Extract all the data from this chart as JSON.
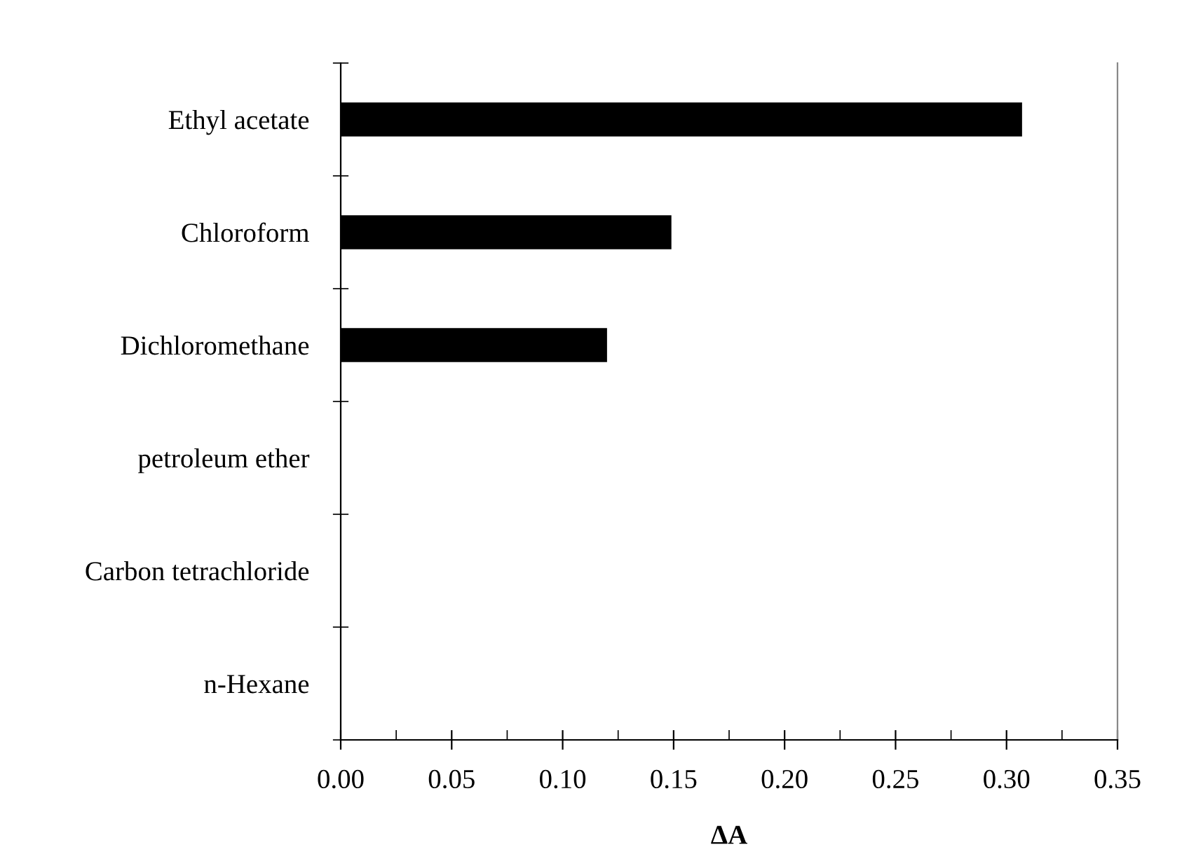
{
  "chart_data": {
    "type": "bar",
    "orientation": "horizontal",
    "xlabel": "ΔA",
    "categories": [
      "Ethyl acetate",
      "Chloroform",
      "Dichloromethane",
      "petroleum ether",
      "Carbon tetrachloride",
      "n-Hexane"
    ],
    "series": [
      {
        "color": "#000000",
        "values": [
          0.307,
          0.149,
          0.12,
          0,
          0,
          0
        ]
      }
    ],
    "xlim": [
      0,
      0.35
    ],
    "xticks": [
      {
        "value": 0,
        "label": "0.00"
      },
      {
        "value": 0.05,
        "label": "0.05"
      },
      {
        "value": 0.1,
        "label": "0.10"
      },
      {
        "value": 0.15,
        "label": "0.15"
      },
      {
        "value": 0.2,
        "label": "0.20"
      },
      {
        "value": 0.25,
        "label": "0.25"
      },
      {
        "value": 0.3,
        "label": "0.30"
      },
      {
        "value": 0.35,
        "label": "0.35"
      }
    ],
    "grid": false
  }
}
